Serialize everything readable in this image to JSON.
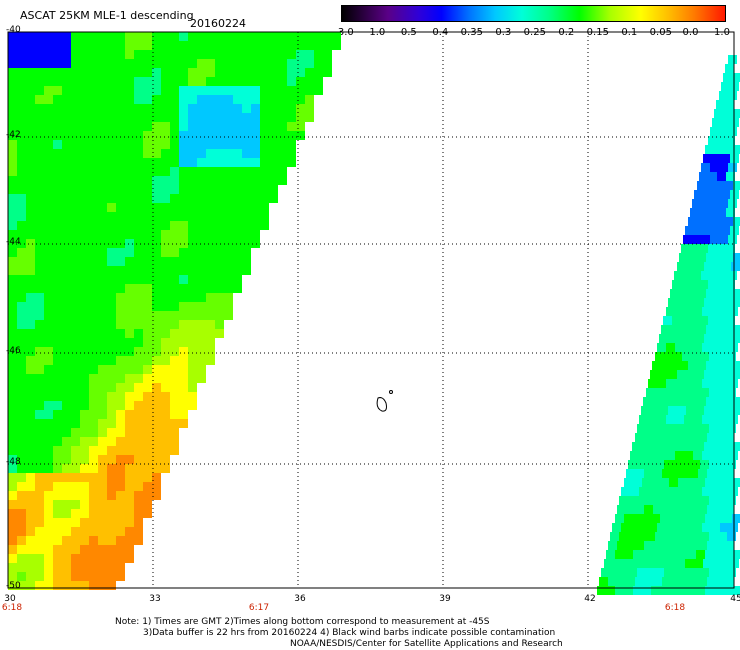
{
  "header": {
    "title": "ASCAT 25KM MLE-1 descending",
    "date": "20160224"
  },
  "colorbar": {
    "labels": [
      "-3.0",
      "-1.0",
      "-0.5",
      "-0.4",
      "-0.35",
      "-0.3",
      "-0.25",
      "-0.2",
      "-0.15",
      "-0.1",
      "-0.05",
      "0.0",
      "1.0"
    ]
  },
  "map": {
    "lat_labels": [
      "-40",
      "-42",
      "-44",
      "-46",
      "-48",
      "-50"
    ],
    "lon_labels": [
      "30",
      "33",
      "36",
      "39",
      "42",
      "45"
    ],
    "time_labels": [
      "6:18",
      "6:17",
      "6:18"
    ]
  },
  "footer": {
    "note1": "Note: 1) Times are GMT 2)Times along bottom correspond to measurement at -45S",
    "note2": "3)Data buffer is 22 hrs from 20160224 4) Black wind barbs indicate possible contamination",
    "note3": "NOAA/NESDIS/Center for Satellite Applications and Research"
  }
}
